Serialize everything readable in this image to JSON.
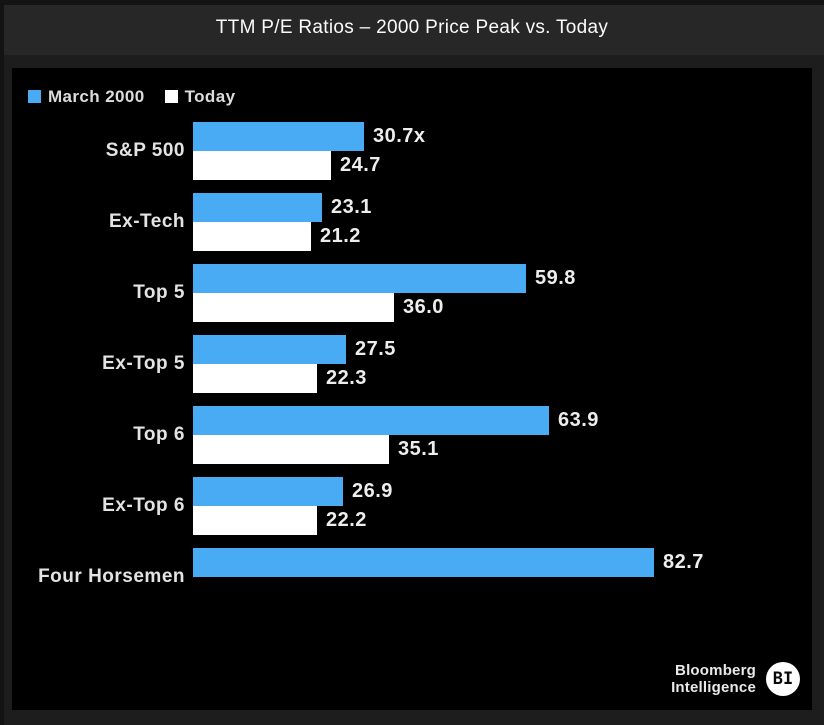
{
  "title": "TTM P/E Ratios – 2000 Price Peak vs. Today",
  "legend": [
    {
      "label": "March 2000",
      "color": "#4AABF5"
    },
    {
      "label": "Today",
      "color": "#FFFFFF"
    }
  ],
  "chart_data": {
    "type": "bar",
    "orientation": "horizontal",
    "title": "TTM P/E Ratios – 2000 Price Peak vs. Today",
    "categories": [
      "S&P 500",
      "Ex-Tech",
      "Top 5",
      "Ex-Top 5",
      "Top 6",
      "Ex-Top 6",
      "Four Horsemen"
    ],
    "series": [
      {
        "name": "March 2000",
        "color": "#4AABF5",
        "values": [
          30.7,
          23.1,
          59.8,
          27.5,
          63.9,
          26.9,
          82.7
        ]
      },
      {
        "name": "Today",
        "color": "#FFFFFF",
        "values": [
          24.7,
          21.2,
          36.0,
          22.3,
          35.1,
          22.2,
          null
        ]
      }
    ],
    "value_labels": [
      [
        "30.7x",
        "24.7"
      ],
      [
        "23.1",
        "21.2"
      ],
      [
        "59.8",
        "36.0"
      ],
      [
        "27.5",
        "22.3"
      ],
      [
        "63.9",
        "35.1"
      ],
      [
        "26.9",
        "22.2"
      ],
      [
        "82.7",
        null
      ]
    ],
    "xlim": [
      0,
      100
    ],
    "grid": false,
    "axes_visible": false,
    "legend_position": "top-left"
  },
  "logo": {
    "line1": "Bloomberg",
    "line2": "Intelligence",
    "badge": "BI"
  },
  "colors": {
    "bar_blue": "#4AABF5",
    "bar_white": "#FFFFFF",
    "panel_bg": "#000000",
    "outer_bg": "#1D1D1D",
    "titlebar_bg": "#272727"
  }
}
